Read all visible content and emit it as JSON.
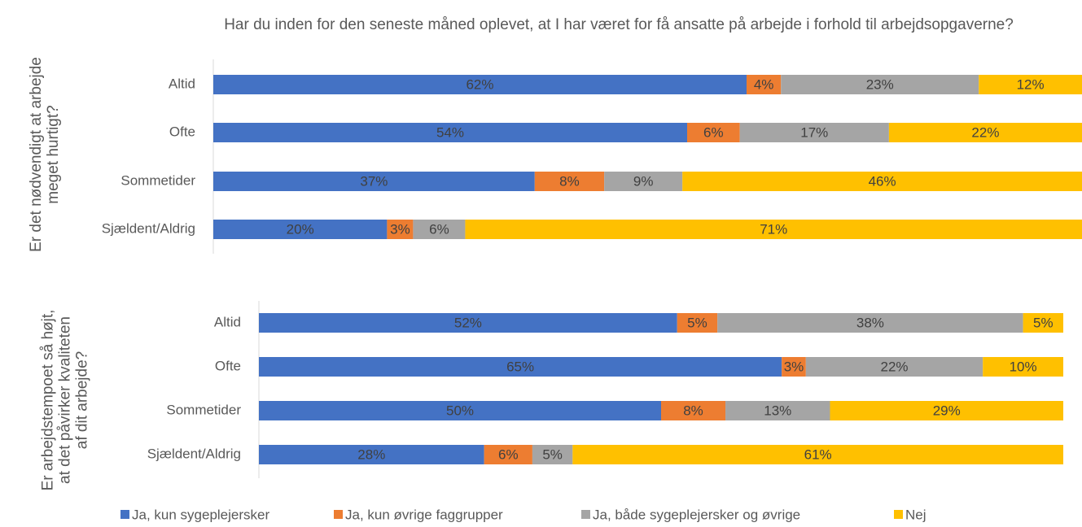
{
  "chart_data": [
    {
      "type": "bar",
      "title": "Har du inden for den seneste måned oplevet, at I har været for få ansatte på arbejde i forhold til arbejdsopgaverne?",
      "ylabel": "Er det nødvendigt at arbejde meget hurtigt?",
      "categories": [
        "Altid",
        "Ofte",
        "Sommetider",
        "Sjældent/Aldrig"
      ],
      "series": [
        {
          "name": "Ja, kun sygeplejersker",
          "color": "#4472c4",
          "values": [
            62,
            54,
            37,
            20
          ],
          "value_labels": [
            "62%",
            "54%",
            "37%",
            "20%"
          ]
        },
        {
          "name": "Ja, kun øvrige faggrupper",
          "color": "#ed7d31",
          "values": [
            4,
            6,
            8,
            3
          ],
          "value_labels": [
            "4%",
            "6%",
            "8%",
            "3%"
          ]
        },
        {
          "name": "Ja, både sygeplejersker og øvrige",
          "color": "#a5a5a5",
          "values": [
            23,
            17,
            9,
            6
          ],
          "value_labels": [
            "23%",
            "17%",
            "9%",
            "6%"
          ]
        },
        {
          "name": "Nej",
          "color": "#ffc000",
          "values": [
            12,
            22,
            46,
            71
          ],
          "value_labels": [
            "12%",
            "22%",
            "46%",
            "71%"
          ]
        }
      ]
    },
    {
      "type": "bar",
      "ylabel": "Er arbejdstempoet så højt, at det påvirker kvaliteten af dit arbejde?",
      "categories": [
        "Altid",
        "Ofte",
        "Sommetider",
        "Sjældent/Aldrig"
      ],
      "series": [
        {
          "color": "#4472c4",
          "values": [
            52,
            65,
            50,
            28
          ],
          "value_labels": [
            "52%",
            "65%",
            "50%",
            "28%"
          ]
        },
        {
          "color": "#ed7d31",
          "values": [
            5,
            3,
            8,
            6
          ],
          "value_labels": [
            "5%",
            "3%",
            "8%",
            "6%"
          ]
        },
        {
          "color": "#a5a5a5",
          "values": [
            38,
            22,
            13,
            5
          ],
          "value_labels": [
            "38%",
            "22%",
            "13%",
            "5%"
          ]
        },
        {
          "color": "#ffc000",
          "values": [
            5,
            10,
            29,
            61
          ],
          "value_labels": [
            "5%",
            "10%",
            "29%",
            "61%"
          ]
        }
      ]
    }
  ]
}
